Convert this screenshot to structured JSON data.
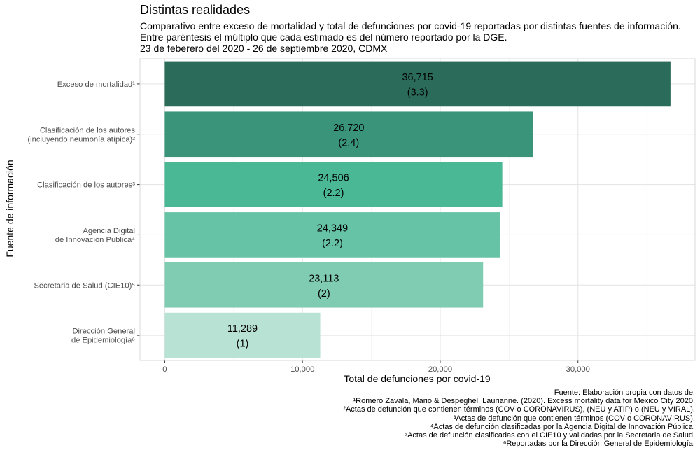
{
  "chart_data": {
    "type": "bar",
    "orientation": "horizontal",
    "title": "Distintas realidades",
    "subtitle": [
      "Comparativo entre exceso de mortalidad y total de defunciones por covid-19 reportadas por distintas fuentes de información.",
      "Entre paréntesis el múltiplo que cada estimado es del número reportado por la DGE.",
      "23 de feberero del 2020 - 26 de septiembre 2020, CDMX"
    ],
    "xlabel": "Total de defunciones por covid-19",
    "ylabel": "Fuente de información",
    "xlim": [
      -1800,
      38500
    ],
    "xticks": [
      0,
      10000,
      20000,
      30000
    ],
    "xtick_labels": [
      "0",
      "10,000",
      "20,000",
      "30,000"
    ],
    "grid": true,
    "categories": [
      [
        "Exceso de mortalidad¹"
      ],
      [
        "Clasificación de los autores",
        "(incluyendo neumonía atípica)²"
      ],
      [
        "Clasificación de los autores³"
      ],
      [
        "Agencia Digital",
        "de Innovación Pública⁴"
      ],
      [
        "Secretaria de Salud (CIE10)⁵"
      ],
      [
        "Dirección General",
        "de Epidemiología⁶"
      ]
    ],
    "values": [
      36715,
      26720,
      24506,
      24349,
      23113,
      11289
    ],
    "value_labels": [
      "36,715",
      "26,720",
      "24,506",
      "24,349",
      "23,113",
      "11,289"
    ],
    "multiple_labels": [
      "(3.3)",
      "(2.4)",
      "(2.2)",
      "(2.2)",
      "(2)",
      "(1)"
    ],
    "colors": [
      "#2a6b5a",
      "#3a9479",
      "#4ab894",
      "#67c3a6",
      "#80ccb3",
      "#b8e2d4"
    ]
  },
  "footer": [
    "Fuente: Elaboración propia con datos de:",
    "¹Romero Zavala, Mario & Despeghel, Laurianne. (2020). Excess mortality data for Mexico City 2020.",
    "²Actas de defunción que contienen términos (COV o CORONAVIRUS), (NEU y ATIP) o (NEU y VIRAL).",
    "³Actas de defunción que contienen términos (COV o CORONAVIRUS).",
    "⁴Actas de defunción clasificadas por la Agencia Digital de Innovación Pública.",
    "⁵Actas de defunción clasificadas con el CIE10 y validadas por la Secretaria de Salud.",
    "⁶Reportadas por la Dirección General de Epidemiología."
  ]
}
